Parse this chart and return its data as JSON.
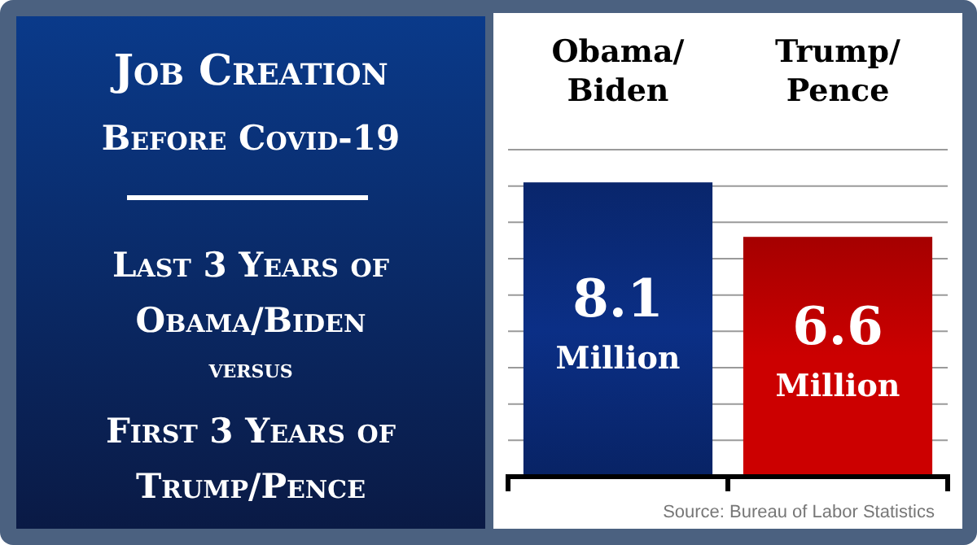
{
  "chart_data": {
    "type": "bar",
    "title": "Job Creation Before Covid-19",
    "annotations": [
      "Last 3 Years of Obama/Biden",
      "versus",
      "First 3 Years of Trump/Pence",
      "Source: Bureau of Labor Statistics"
    ],
    "categories": [
      "Obama/Biden",
      "Trump/Pence"
    ],
    "values": [
      8.1,
      6.6
    ],
    "colors": [
      "#0b2f86",
      "#cc0000"
    ],
    "value_labels": [
      "8.1 Million",
      "6.6 Million"
    ],
    "ylim": [
      0,
      9
    ],
    "yticks": [
      {
        "value": 1,
        "label": null
      },
      {
        "value": 2,
        "label": null
      },
      {
        "value": 3,
        "label": null
      },
      {
        "value": 4,
        "label": null
      },
      {
        "value": 5,
        "label": null
      },
      {
        "value": 6,
        "label": null
      },
      {
        "value": 7,
        "label": null
      },
      {
        "value": 8,
        "label": null
      },
      {
        "value": 9,
        "label": null
      }
    ],
    "grid": "y",
    "tick_labels": "x"
  }
}
